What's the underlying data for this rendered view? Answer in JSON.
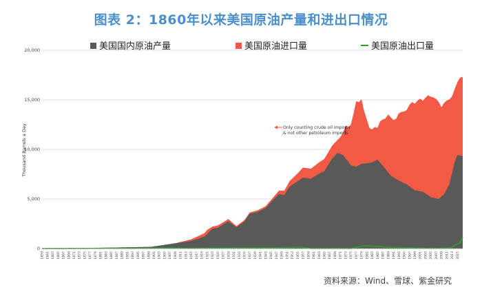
{
  "title": "图表 2：1860年以来美国原油产量和进出口情况",
  "source": "资料来源：Wind、雪球、紫金研究",
  "chart_data": {
    "type": "area",
    "title": "图表 2：1860年以来美国原油产量和进出口情况",
    "xlabel": "",
    "ylabel": "Thousand Barrels a Day",
    "ylim": [
      0,
      20000
    ],
    "yticks": [
      "0",
      "5,000",
      "10,000",
      "15,000",
      "20,000"
    ],
    "xlim": [
      1859,
      2017
    ],
    "grid": true,
    "legend": [
      {
        "name": "美国国内原油产量",
        "color": "#595959"
      },
      {
        "name": "美国原油进口量",
        "color": "#f25a45"
      },
      {
        "name": "美国原油出口量",
        "color": "#2ca02c"
      }
    ],
    "annotation": {
      "line1": "Only counting crude oil imports",
      "line2": "& not other petroleum  imports",
      "x": 1973
    },
    "x_tick_labels": [
      "1859",
      "1861",
      "1863",
      "1865",
      "1867",
      "1869",
      "1871",
      "1873",
      "1875",
      "1877",
      "1879",
      "1881",
      "1883",
      "1885",
      "1887",
      "1889",
      "1891",
      "1893",
      "1895",
      "1897",
      "1899",
      "1901",
      "1903",
      "1905",
      "1907",
      "1909",
      "1911",
      "1913",
      "1915",
      "1917",
      "1919",
      "1921",
      "1923",
      "1925",
      "1927",
      "1929",
      "1931",
      "1933",
      "1935",
      "1937",
      "1939",
      "1941",
      "1943",
      "1945",
      "1947",
      "1949",
      "1951",
      "1953",
      "1955",
      "1957",
      "1959",
      "1961",
      "1963",
      "1965",
      "1967",
      "1969",
      "1971",
      "1973",
      "1975",
      "1977",
      "1979",
      "1981",
      "1983",
      "1985",
      "1987",
      "1989",
      "1991",
      "1993",
      "1995",
      "1997",
      "1999",
      "2001",
      "2003",
      "2005",
      "2007",
      "2009",
      "2011",
      "2013",
      "2015"
    ],
    "series": [
      {
        "name": "美国国内原油产量",
        "points": [
          [
            1859,
            0
          ],
          [
            1870,
            15
          ],
          [
            1880,
            70
          ],
          [
            1890,
            125
          ],
          [
            1895,
            145
          ],
          [
            1900,
            175
          ],
          [
            1905,
            370
          ],
          [
            1910,
            575
          ],
          [
            1915,
            770
          ],
          [
            1920,
            1210
          ],
          [
            1923,
            2000
          ],
          [
            1925,
            2100
          ],
          [
            1929,
            2760
          ],
          [
            1932,
            2150
          ],
          [
            1935,
            2730
          ],
          [
            1937,
            3500
          ],
          [
            1940,
            3700
          ],
          [
            1943,
            4100
          ],
          [
            1945,
            4700
          ],
          [
            1948,
            5500
          ],
          [
            1950,
            5400
          ],
          [
            1952,
            6250
          ],
          [
            1955,
            6800
          ],
          [
            1957,
            7150
          ],
          [
            1960,
            7050
          ],
          [
            1963,
            7550
          ],
          [
            1965,
            7800
          ],
          [
            1968,
            9100
          ],
          [
            1970,
            9640
          ],
          [
            1972,
            9450
          ],
          [
            1975,
            8400
          ],
          [
            1977,
            8250
          ],
          [
            1979,
            8550
          ],
          [
            1981,
            8600
          ],
          [
            1983,
            8700
          ],
          [
            1985,
            8970
          ],
          [
            1987,
            8350
          ],
          [
            1990,
            7350
          ],
          [
            1993,
            6850
          ],
          [
            1996,
            6470
          ],
          [
            1999,
            5880
          ],
          [
            2002,
            5750
          ],
          [
            2005,
            5180
          ],
          [
            2008,
            5000
          ],
          [
            2010,
            5480
          ],
          [
            2012,
            6500
          ],
          [
            2014,
            8760
          ],
          [
            2015,
            9430
          ],
          [
            2017,
            9350
          ]
        ]
      },
      {
        "name": "美国原油进口量",
        "points": [
          [
            1859,
            0
          ],
          [
            1909,
            0
          ],
          [
            1913,
            100
          ],
          [
            1919,
            300
          ],
          [
            1921,
            400
          ],
          [
            1923,
            220
          ],
          [
            1929,
            220
          ],
          [
            1932,
            120
          ],
          [
            1935,
            140
          ],
          [
            1940,
            160
          ],
          [
            1945,
            200
          ],
          [
            1948,
            350
          ],
          [
            1951,
            490
          ],
          [
            1955,
            780
          ],
          [
            1957,
            1020
          ],
          [
            1960,
            1010
          ],
          [
            1963,
            1130
          ],
          [
            1965,
            1240
          ],
          [
            1968,
            1290
          ],
          [
            1970,
            1320
          ],
          [
            1971,
            1680
          ],
          [
            1972,
            2220
          ],
          [
            1973,
            3240
          ],
          [
            1974,
            3480
          ],
          [
            1975,
            4100
          ],
          [
            1976,
            5290
          ],
          [
            1977,
            6620
          ],
          [
            1978,
            6360
          ],
          [
            1979,
            6520
          ],
          [
            1980,
            5260
          ],
          [
            1981,
            4400
          ],
          [
            1982,
            3490
          ],
          [
            1983,
            3330
          ],
          [
            1984,
            3430
          ],
          [
            1985,
            3200
          ],
          [
            1986,
            4180
          ],
          [
            1987,
            4670
          ],
          [
            1988,
            5110
          ],
          [
            1989,
            5840
          ],
          [
            1990,
            5890
          ],
          [
            1991,
            5780
          ],
          [
            1992,
            6080
          ],
          [
            1993,
            6790
          ],
          [
            1994,
            7060
          ],
          [
            1995,
            7230
          ],
          [
            1996,
            7510
          ],
          [
            1997,
            8230
          ],
          [
            1998,
            8710
          ],
          [
            1999,
            8730
          ],
          [
            2000,
            9070
          ],
          [
            2001,
            9330
          ],
          [
            2002,
            9140
          ],
          [
            2003,
            9660
          ],
          [
            2004,
            10090
          ],
          [
            2005,
            10130
          ],
          [
            2006,
            10120
          ],
          [
            2007,
            10030
          ],
          [
            2008,
            9780
          ],
          [
            2009,
            9010
          ],
          [
            2010,
            9210
          ],
          [
            2011,
            8940
          ],
          [
            2012,
            8530
          ],
          [
            2013,
            7730
          ],
          [
            2014,
            7340
          ],
          [
            2015,
            7360
          ],
          [
            2016,
            7850
          ],
          [
            2017,
            7970
          ]
        ]
      },
      {
        "name": "美国原油出口量",
        "points": [
          [
            1859,
            0
          ],
          [
            1880,
            20
          ],
          [
            1900,
            40
          ],
          [
            1905,
            60
          ],
          [
            1915,
            30
          ],
          [
            1920,
            40
          ],
          [
            1925,
            50
          ],
          [
            1930,
            60
          ],
          [
            1940,
            70
          ],
          [
            1945,
            60
          ],
          [
            1950,
            95
          ],
          [
            1957,
            140
          ],
          [
            1960,
            8
          ],
          [
            1970,
            14
          ],
          [
            1975,
            6
          ],
          [
            1980,
            287
          ],
          [
            1985,
            204
          ],
          [
            1990,
            109
          ],
          [
            1995,
            95
          ],
          [
            2000,
            50
          ],
          [
            2005,
            32
          ],
          [
            2010,
            42
          ],
          [
            2012,
            67
          ],
          [
            2013,
            134
          ],
          [
            2014,
            351
          ],
          [
            2015,
            465
          ],
          [
            2016,
            591
          ],
          [
            2017,
            1158
          ]
        ]
      }
    ]
  }
}
